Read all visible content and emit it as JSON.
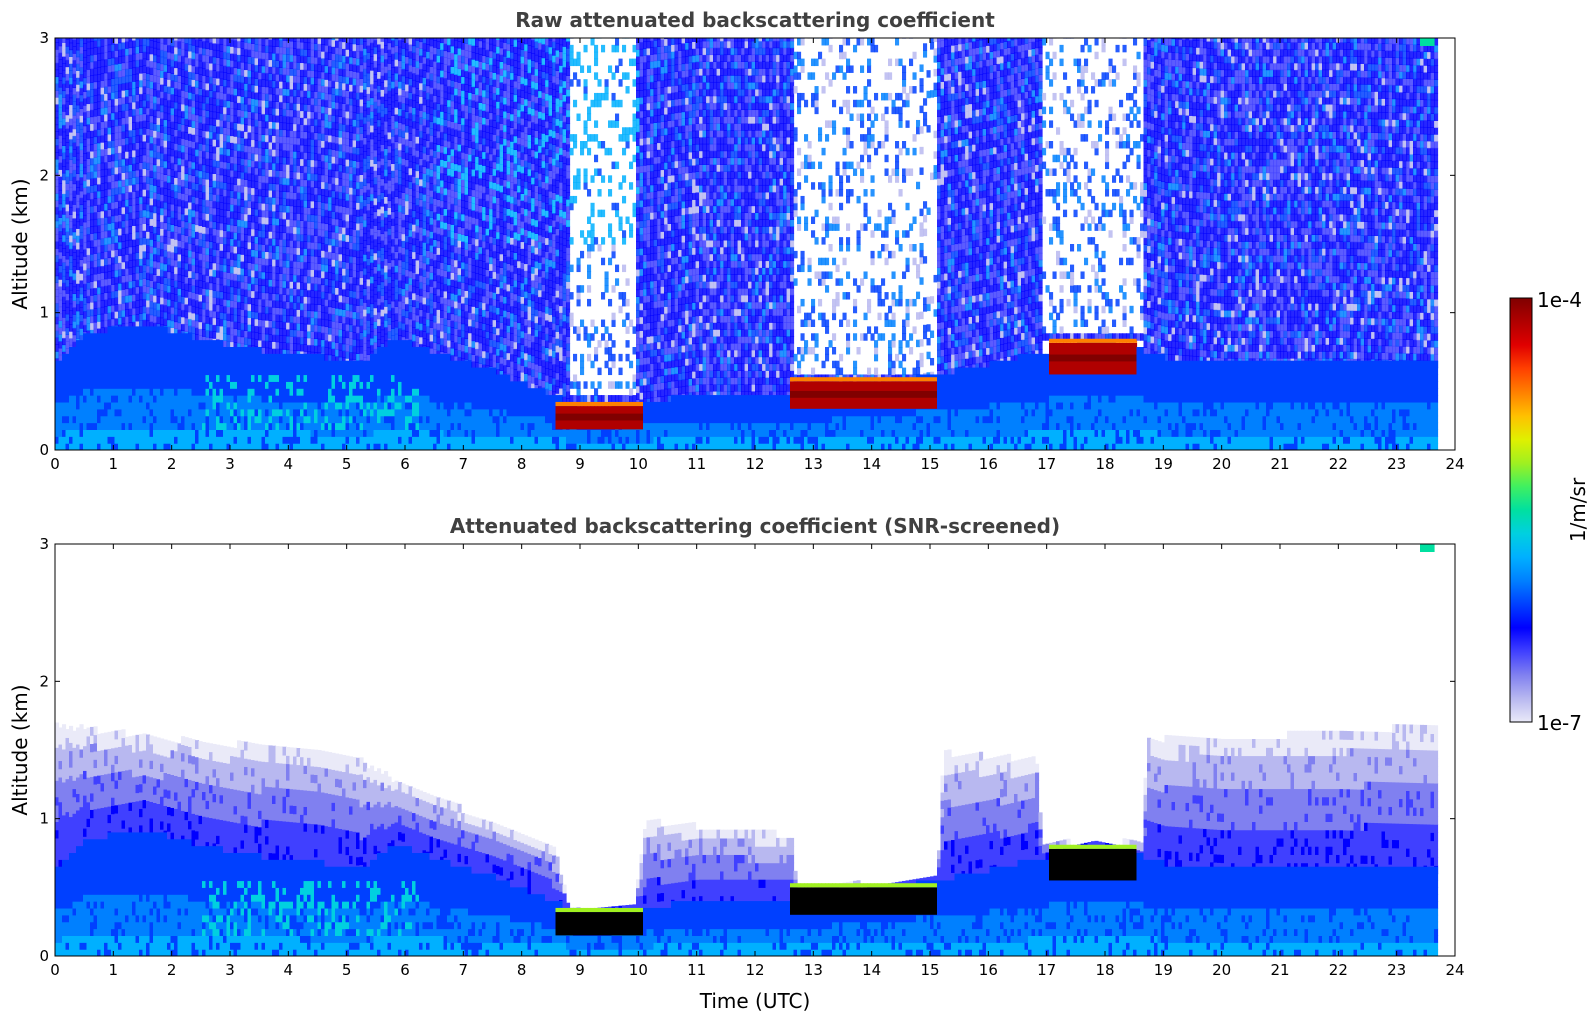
{
  "chart_data": [
    {
      "type": "heatmap",
      "title": "Raw attenuated backscattering coefficient",
      "xlabel": "",
      "ylabel": "Altitude (km)",
      "xlim": [
        0,
        24
      ],
      "ylim": [
        0,
        3
      ],
      "x_ticks": [
        "0",
        "1",
        "2",
        "3",
        "4",
        "5",
        "6",
        "7",
        "8",
        "9",
        "10",
        "11",
        "12",
        "13",
        "14",
        "15",
        "16",
        "17",
        "18",
        "19",
        "20",
        "21",
        "22",
        "23",
        "24"
      ],
      "y_ticks": [
        "0",
        "1",
        "2",
        "3"
      ],
      "data_end_time": 23.65,
      "screened": false,
      "boundary_layer_top_km": [
        [
          0,
          0.62
        ],
        [
          0.5,
          0.82
        ],
        [
          1.5,
          0.9
        ],
        [
          2.5,
          0.78
        ],
        [
          3.5,
          0.7
        ],
        [
          4.5,
          0.66
        ],
        [
          5.2,
          0.6
        ],
        [
          5.8,
          0.8
        ],
        [
          6.5,
          0.68
        ],
        [
          7.5,
          0.55
        ],
        [
          8.5,
          0.38
        ],
        [
          9,
          0.28
        ],
        [
          10,
          0.32
        ],
        [
          11,
          0.38
        ],
        [
          12.6,
          0.38
        ],
        [
          13,
          0.38
        ],
        [
          14,
          0.45
        ],
        [
          15,
          0.52
        ],
        [
          16,
          0.6
        ],
        [
          17,
          0.7
        ],
        [
          17.8,
          0.78
        ],
        [
          18.5,
          0.72
        ],
        [
          19,
          0.65
        ],
        [
          20,
          0.62
        ],
        [
          22,
          0.62
        ],
        [
          23.65,
          0.6
        ]
      ],
      "cloud_layers": [
        {
          "start": 8.55,
          "end": 10.05,
          "base_km": 0.15,
          "top_km": 0.32
        },
        {
          "start": 12.6,
          "end": 15.1,
          "base_km": 0.3,
          "top_km": 0.5
        },
        {
          "start": 17.0,
          "end": 18.5,
          "base_km": 0.55,
          "top_km": 0.78
        }
      ],
      "clear_gaps": [
        {
          "start": 8.8,
          "end": 9.9,
          "from_km": 0.35
        },
        {
          "start": 12.65,
          "end": 15.1,
          "from_km": 0.5
        },
        {
          "start": 16.9,
          "end": 18.6,
          "from_km": 0.8
        }
      ]
    },
    {
      "type": "heatmap",
      "title": "Attenuated backscattering coefficient (SNR-screened)",
      "xlabel": "Time (UTC)",
      "ylabel": "Altitude (km)",
      "xlim": [
        0,
        24
      ],
      "ylim": [
        0,
        3
      ],
      "x_ticks": [
        "0",
        "1",
        "2",
        "3",
        "4",
        "5",
        "6",
        "7",
        "8",
        "9",
        "10",
        "11",
        "12",
        "13",
        "14",
        "15",
        "16",
        "17",
        "18",
        "19",
        "20",
        "21",
        "22",
        "23",
        "24"
      ],
      "y_ticks": [
        "0",
        "1",
        "2",
        "3"
      ],
      "data_end_time": 23.65,
      "screened": true,
      "screened_top_km": [
        [
          0,
          1.65
        ],
        [
          2,
          1.55
        ],
        [
          5,
          1.45
        ],
        [
          6,
          1.2
        ],
        [
          7.5,
          0.95
        ],
        [
          8.5,
          0.8
        ],
        [
          8.8,
          0.3
        ],
        [
          9.9,
          0.35
        ],
        [
          10.1,
          0.95
        ],
        [
          12.6,
          0.85
        ],
        [
          12.7,
          0.45
        ],
        [
          15.1,
          0.55
        ],
        [
          15.2,
          1.45
        ],
        [
          16.8,
          1.4
        ],
        [
          16.9,
          0.8
        ],
        [
          18.6,
          0.8
        ],
        [
          18.7,
          1.55
        ],
        [
          20,
          1.55
        ],
        [
          23.65,
          1.65
        ]
      ]
    }
  ],
  "colorbar": {
    "max_label": "1e-4",
    "min_label": "1e-7",
    "unit_label": "1/m/sr",
    "colormap": [
      "#eaeaf8",
      "#b8b8f0",
      "#8080f0",
      "#4040ff",
      "#0000ff",
      "#0040ff",
      "#0080ff",
      "#00b0ff",
      "#00d0e0",
      "#00e0a0",
      "#40f060",
      "#a0f020",
      "#e0f000",
      "#ffc000",
      "#ff8000",
      "#ff4000",
      "#e00000",
      "#b00000",
      "#800000"
    ]
  }
}
